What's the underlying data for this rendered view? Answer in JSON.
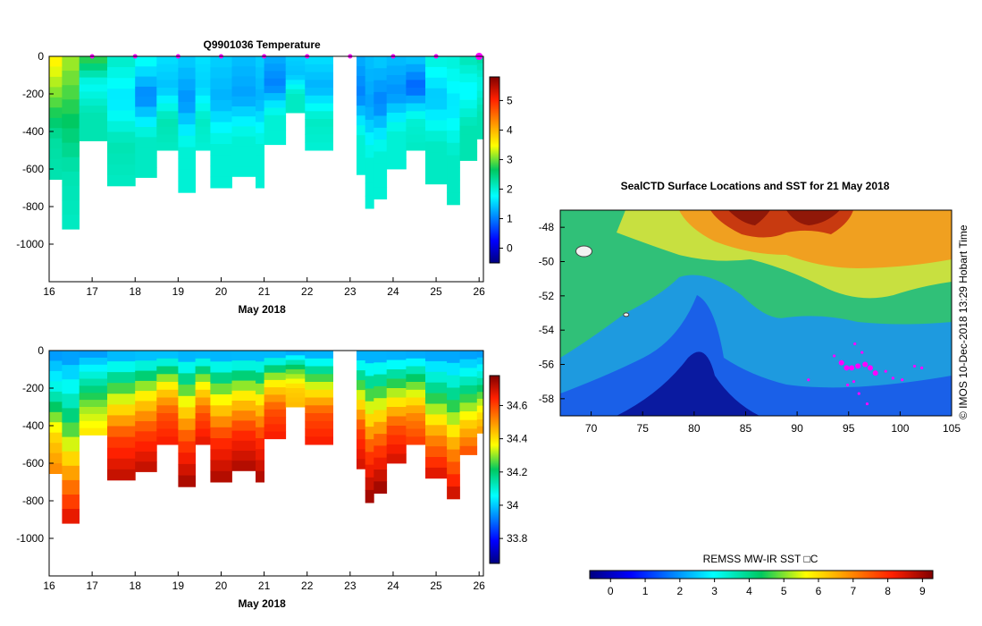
{
  "chart_data": [
    {
      "type": "heatmap",
      "title": "Q9901036  Temperature",
      "xlabel": "May 2018",
      "ylabel": "",
      "x_ticks": [
        "16",
        "17",
        "18",
        "19",
        "20",
        "21",
        "22",
        "23",
        "24",
        "25",
        "26"
      ],
      "y_ticks": [
        "0",
        "-200",
        "-400",
        "-600",
        "-800",
        "-1000"
      ],
      "xlim": [
        16,
        26.1
      ],
      "ylim": [
        -1200,
        0
      ],
      "profile_markers_day": [
        17,
        18,
        19,
        20,
        21,
        22,
        23,
        24,
        25,
        26
      ],
      "colorbar": {
        "ticks": [
          "0",
          "1",
          "2",
          "3",
          "4",
          "5"
        ],
        "range": [
          -0.5,
          5.8
        ]
      },
      "gap": [
        22.6,
        23.15
      ],
      "profiles": [
        {
          "x0": 16.0,
          "x1": 16.3,
          "depth": -655,
          "t": [
            3.6,
            3.0,
            2.3,
            2.2
          ]
        },
        {
          "x0": 16.3,
          "x1": 16.7,
          "depth": -920,
          "t": [
            3.2,
            2.7,
            2.2,
            2.1
          ]
        },
        {
          "x0": 16.7,
          "x1": 17.35,
          "depth": -450,
          "t": [
            2.9,
            1.8,
            2.2,
            2.2
          ]
        },
        {
          "x0": 17.35,
          "x1": 18.0,
          "depth": -690,
          "t": [
            2.1,
            1.6,
            2.2,
            2.1
          ]
        },
        {
          "x0": 18.0,
          "x1": 18.5,
          "depth": -645,
          "t": [
            1.9,
            1.0,
            2.1,
            2.1
          ]
        },
        {
          "x0": 18.5,
          "x1": 19.0,
          "depth": -500,
          "t": [
            1.6,
            1.4,
            2.2,
            2.1
          ]
        },
        {
          "x0": 19.0,
          "x1": 19.4,
          "depth": -725,
          "t": [
            1.5,
            1.1,
            2.0,
            2.0
          ]
        },
        {
          "x0": 19.4,
          "x1": 19.75,
          "depth": -500,
          "t": [
            1.6,
            1.5,
            2.1,
            2.0
          ]
        },
        {
          "x0": 19.75,
          "x1": 20.25,
          "depth": -700,
          "t": [
            1.5,
            1.3,
            2.0,
            2.0
          ]
        },
        {
          "x0": 20.25,
          "x1": 20.8,
          "depth": -640,
          "t": [
            1.4,
            1.2,
            2.0,
            2.0
          ]
        },
        {
          "x0": 20.8,
          "x1": 21.0,
          "depth": -700,
          "t": [
            1.5,
            1.3,
            2.0,
            2.0
          ]
        },
        {
          "x0": 21.0,
          "x1": 21.5,
          "depth": -470,
          "t": [
            1.3,
            1.0,
            2.0,
            2.0
          ]
        },
        {
          "x0": 21.5,
          "x1": 21.95,
          "depth": -300,
          "t": [
            1.5,
            1.4,
            2.1,
            2.1
          ]
        },
        {
          "x0": 21.95,
          "x1": 22.6,
          "depth": -500,
          "t": [
            1.6,
            1.3,
            2.1,
            2.0
          ]
        },
        {
          "x0": 23.15,
          "x1": 23.35,
          "depth": -630,
          "t": [
            1.3,
            1.0,
            2.0,
            2.0
          ]
        },
        {
          "x0": 23.35,
          "x1": 23.55,
          "depth": -810,
          "t": [
            1.4,
            1.2,
            2.0,
            2.0
          ]
        },
        {
          "x0": 23.55,
          "x1": 23.85,
          "depth": -760,
          "t": [
            1.5,
            1.0,
            2.0,
            2.0
          ]
        },
        {
          "x0": 23.85,
          "x1": 24.3,
          "depth": -600,
          "t": [
            1.4,
            1.1,
            2.0,
            2.0
          ]
        },
        {
          "x0": 24.3,
          "x1": 24.75,
          "depth": -500,
          "t": [
            1.5,
            0.8,
            2.0,
            2.1
          ]
        },
        {
          "x0": 24.75,
          "x1": 25.25,
          "depth": -680,
          "t": [
            2.0,
            1.4,
            2.1,
            2.1
          ]
        },
        {
          "x0": 25.25,
          "x1": 25.55,
          "depth": -790,
          "t": [
            2.0,
            1.6,
            2.1,
            2.1
          ]
        },
        {
          "x0": 25.55,
          "x1": 25.95,
          "depth": -555,
          "t": [
            2.2,
            1.7,
            2.2,
            2.2
          ]
        },
        {
          "x0": 25.95,
          "x1": 26.1,
          "depth": -440,
          "t": [
            2.3,
            1.9,
            2.2,
            2.2
          ]
        }
      ]
    },
    {
      "type": "heatmap",
      "title": "",
      "xlabel": "May 2018",
      "ylabel": "",
      "x_ticks": [
        "16",
        "17",
        "18",
        "19",
        "20",
        "21",
        "22",
        "23",
        "24",
        "25",
        "26"
      ],
      "y_ticks": [
        "0",
        "-200",
        "-400",
        "-600",
        "-800",
        "-1000"
      ],
      "xlim": [
        16,
        26.1
      ],
      "ylim": [
        -1200,
        0
      ],
      "colorbar": {
        "ticks": [
          "33.8",
          "34",
          "34.2",
          "34.4",
          "34.6"
        ],
        "range": [
          33.65,
          34.78
        ]
      },
      "gap": [
        22.6,
        23.15
      ],
      "profiles": [
        {
          "x0": 16.0,
          "x1": 16.3,
          "depth": -655,
          "s": [
            33.93,
            34.1,
            34.4,
            34.52
          ]
        },
        {
          "x0": 16.3,
          "x1": 16.7,
          "depth": -920,
          "s": [
            33.93,
            34.15,
            34.45,
            34.7
          ]
        },
        {
          "x0": 16.7,
          "x1": 17.35,
          "depth": -450,
          "s": [
            33.93,
            34.12,
            34.3,
            34.4
          ]
        },
        {
          "x0": 17.35,
          "x1": 18.0,
          "depth": -690,
          "s": [
            33.94,
            34.3,
            34.6,
            34.72
          ]
        },
        {
          "x0": 18.0,
          "x1": 18.5,
          "depth": -645,
          "s": [
            33.94,
            34.35,
            34.6,
            34.72
          ]
        },
        {
          "x0": 18.5,
          "x1": 19.0,
          "depth": -500,
          "s": [
            33.94,
            34.35,
            34.58,
            34.66
          ]
        },
        {
          "x0": 19.0,
          "x1": 19.4,
          "depth": -725,
          "s": [
            33.93,
            34.32,
            34.6,
            34.75
          ]
        },
        {
          "x0": 19.4,
          "x1": 19.75,
          "depth": -500,
          "s": [
            33.93,
            34.34,
            34.58,
            34.68
          ]
        },
        {
          "x0": 19.75,
          "x1": 20.25,
          "depth": -700,
          "s": [
            33.93,
            34.33,
            34.62,
            34.74
          ]
        },
        {
          "x0": 20.25,
          "x1": 20.8,
          "depth": -640,
          "s": [
            33.93,
            34.35,
            34.62,
            34.74
          ]
        },
        {
          "x0": 20.8,
          "x1": 21.0,
          "depth": -700,
          "s": [
            33.93,
            34.35,
            34.62,
            34.74
          ]
        },
        {
          "x0": 21.0,
          "x1": 21.5,
          "depth": -470,
          "s": [
            33.93,
            34.35,
            34.58,
            34.66
          ]
        },
        {
          "x0": 21.5,
          "x1": 21.95,
          "depth": -300,
          "s": [
            33.93,
            34.25,
            34.42,
            34.45
          ]
        },
        {
          "x0": 21.95,
          "x1": 22.6,
          "depth": -500,
          "s": [
            33.93,
            34.3,
            34.58,
            34.66
          ]
        },
        {
          "x0": 23.15,
          "x1": 23.35,
          "depth": -630,
          "s": [
            33.93,
            34.3,
            34.6,
            34.7
          ]
        },
        {
          "x0": 23.35,
          "x1": 23.55,
          "depth": -810,
          "s": [
            33.93,
            34.3,
            34.6,
            34.76
          ]
        },
        {
          "x0": 23.55,
          "x1": 23.85,
          "depth": -760,
          "s": [
            33.93,
            34.3,
            34.6,
            34.76
          ]
        },
        {
          "x0": 23.85,
          "x1": 24.3,
          "depth": -600,
          "s": [
            33.93,
            34.28,
            34.58,
            34.7
          ]
        },
        {
          "x0": 24.3,
          "x1": 24.75,
          "depth": -500,
          "s": [
            33.93,
            34.25,
            34.5,
            34.62
          ]
        },
        {
          "x0": 24.75,
          "x1": 25.25,
          "depth": -680,
          "s": [
            33.93,
            34.2,
            34.5,
            34.7
          ]
        },
        {
          "x0": 25.25,
          "x1": 25.55,
          "depth": -790,
          "s": [
            33.93,
            34.2,
            34.5,
            34.72
          ]
        },
        {
          "x0": 25.55,
          "x1": 25.95,
          "depth": -555,
          "s": [
            33.93,
            34.15,
            34.4,
            34.6
          ]
        },
        {
          "x0": 25.95,
          "x1": 26.1,
          "depth": -440,
          "s": [
            33.93,
            34.12,
            34.35,
            34.5
          ]
        }
      ]
    },
    {
      "type": "heatmap",
      "title": "SealCTD Surface Locations and SST for 21 May 2018",
      "xlabel": "",
      "ylabel": "",
      "x_ticks": [
        "70",
        "75",
        "80",
        "85",
        "90",
        "95",
        "100",
        "105"
      ],
      "y_ticks": [
        "-48",
        "-50",
        "-52",
        "-54",
        "-56",
        "-58"
      ],
      "xlim": [
        67,
        105
      ],
      "ylim": [
        -59,
        -47
      ],
      "colorbar": {
        "label": "REMSS MW-IR SST □C",
        "ticks": [
          "0",
          "1",
          "2",
          "3",
          "4",
          "5",
          "6",
          "7",
          "8",
          "9"
        ],
        "range": [
          -0.6,
          9.3
        ]
      },
      "credit": "©  IMOS 10-Dec-2018 13:29 Hobart Time",
      "seal_points": [
        {
          "lon": 94.3,
          "lat": -55.9
        },
        {
          "lon": 94.8,
          "lat": -56.2
        },
        {
          "lon": 95.3,
          "lat": -56.2
        },
        {
          "lon": 95.9,
          "lat": -56.1
        },
        {
          "lon": 96.6,
          "lat": -56.0
        },
        {
          "lon": 97.1,
          "lat": -56.2
        },
        {
          "lon": 97.6,
          "lat": -56.5
        },
        {
          "lon": 93.6,
          "lat": -55.5
        },
        {
          "lon": 95.5,
          "lat": -57.0
        },
        {
          "lon": 96.0,
          "lat": -57.7
        },
        {
          "lon": 96.8,
          "lat": -58.3
        },
        {
          "lon": 98.6,
          "lat": -56.4
        },
        {
          "lon": 99.3,
          "lat": -56.8
        },
        {
          "lon": 100.2,
          "lat": -56.9
        },
        {
          "lon": 101.4,
          "lat": -56.1
        },
        {
          "lon": 102.1,
          "lat": -56.2
        },
        {
          "lon": 91.1,
          "lat": -56.9
        },
        {
          "lon": 95.6,
          "lat": -54.8
        },
        {
          "lon": 96.3,
          "lat": -55.3
        },
        {
          "lon": 94.9,
          "lat": -57.2
        }
      ]
    }
  ]
}
